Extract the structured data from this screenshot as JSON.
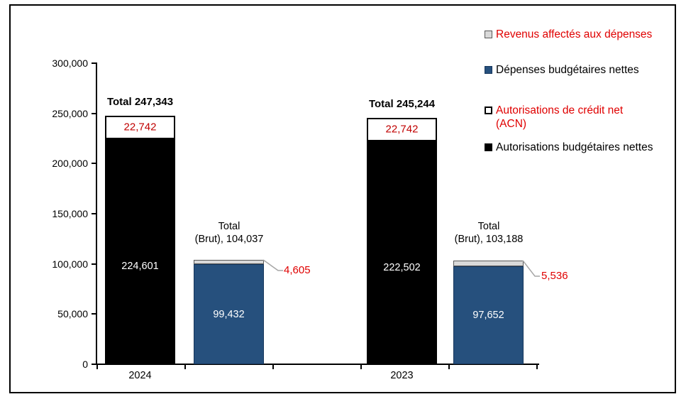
{
  "chart_data": {
    "type": "bar",
    "subtype": "stacked-clustered",
    "title": "",
    "grid": false,
    "legend_position": "right",
    "ymax": 300000,
    "ylim": [
      0,
      300000
    ],
    "yaxis_tick_labels": [
      "300,000",
      "250,000",
      "200,000",
      "150,000",
      "100,000",
      "50,000",
      "0"
    ],
    "categories": [
      "2024",
      "2023"
    ],
    "series": [
      {
        "name": "Autorisations budgétaires nettes",
        "values": [
          224601,
          222502
        ],
        "color": "#000000"
      },
      {
        "name": "Autorisations de crédit net (ACN)",
        "values": [
          22742,
          22742
        ],
        "color": "#FFFFFF"
      },
      {
        "name": "Dépenses budgétaires nettes",
        "values": [
          99432,
          97652
        ],
        "color": "#26507D"
      },
      {
        "name": "Revenus affectés aux dépenses",
        "values": [
          4605,
          5536
        ],
        "color": "#D9D9D9"
      }
    ],
    "groups": [
      {
        "category": "2024",
        "values": {
          "net": 224601,
          "acn": 22742,
          "dep": 99432,
          "rev": 4605,
          "total": 247343,
          "total_brut": 104037
        },
        "labels": {
          "total": "Total 247,343",
          "acn": "22,742",
          "net": "224,601",
          "dep": "99,432",
          "brut_line1": "Total",
          "brut_line2": "(Brut), 104,037",
          "rev": "4,605"
        }
      },
      {
        "category": "2023",
        "values": {
          "net": 222502,
          "acn": 22742,
          "dep": 97652,
          "rev": 5536,
          "total": 245244,
          "total_brut": 103188
        },
        "labels": {
          "total": "Total 245,244",
          "acn": "22,742",
          "net": "222,502",
          "dep": "97,652",
          "brut_line1": "Total",
          "brut_line2": "(Brut), 103,188",
          "rev": "5,536"
        }
      }
    ]
  },
  "legend": {
    "items": [
      {
        "label": "Revenus affectés aux dépenses",
        "swatch": "#D9D9D9",
        "text_color": "#E00000"
      },
      {
        "label": "Dépenses budgétaires nettes",
        "swatch": "#26507D",
        "text_color": "#000000"
      },
      {
        "label": "Autorisations de crédit net",
        "label_line2": "(ACN)",
        "swatch": "#FFFFFF",
        "text_color": "#E00000"
      },
      {
        "label": "Autorisations budgétaires nettes",
        "swatch": "#000000",
        "text_color": "#000000"
      }
    ]
  },
  "colors": {
    "bar_black": "#000000",
    "bar_blue": "#26507D",
    "strip_gray": "#D9D9D9",
    "red_text": "#E00000",
    "dark_red_text": "#C00000",
    "leader_gray": "#A6A6A6"
  }
}
